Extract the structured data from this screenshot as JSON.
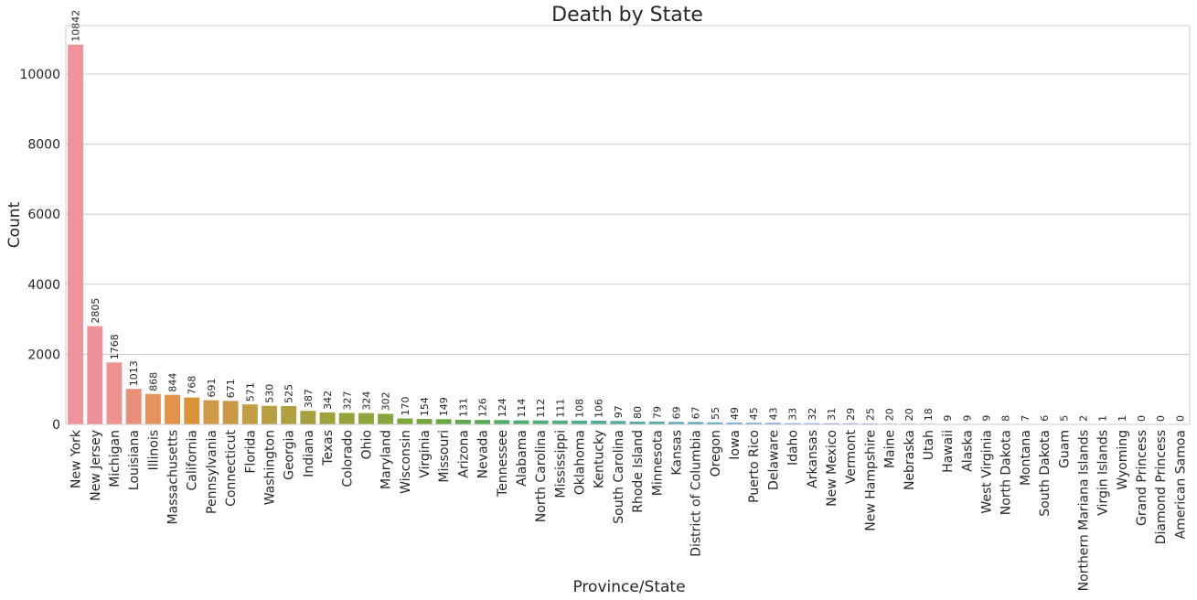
{
  "chart_data": {
    "type": "bar",
    "title": "Death by State",
    "xlabel": "Province/State",
    "ylabel": "Count",
    "ylim": [
      0,
      11384
    ],
    "yticks": [
      0,
      2000,
      4000,
      6000,
      8000,
      10000
    ],
    "grid": "horizontal",
    "categories": [
      "New York",
      "New Jersey",
      "Michigan",
      "Louisiana",
      "Illinois",
      "Massachusetts",
      "California",
      "Pennsylvania",
      "Connecticut",
      "Florida",
      "Washington",
      "Georgia",
      "Indiana",
      "Texas",
      "Colorado",
      "Ohio",
      "Maryland",
      "Wisconsin",
      "Virginia",
      "Missouri",
      "Arizona",
      "Nevada",
      "Tennessee",
      "Alabama",
      "North Carolina",
      "Mississippi",
      "Oklahoma",
      "Kentucky",
      "South Carolina",
      "Rhode Island",
      "Minnesota",
      "Kansas",
      "District of Columbia",
      "Oregon",
      "Iowa",
      "Puerto Rico",
      "Delaware",
      "Idaho",
      "Arkansas",
      "New Mexico",
      "Vermont",
      "New Hampshire",
      "Maine",
      "Nebraska",
      "Utah",
      "Hawaii",
      "Alaska",
      "West Virginia",
      "North Dakota",
      "Montana",
      "South Dakota",
      "Guam",
      "Northern Mariana Islands",
      "Virgin Islands",
      "Wyoming",
      "Grand Princess",
      "Diamond Princess",
      "American Samoa"
    ],
    "values": [
      10842,
      2805,
      1768,
      1013,
      868,
      844,
      768,
      691,
      671,
      571,
      530,
      525,
      387,
      342,
      327,
      324,
      302,
      170,
      154,
      149,
      131,
      126,
      124,
      114,
      112,
      111,
      108,
      106,
      97,
      80,
      79,
      69,
      67,
      55,
      49,
      45,
      43,
      33,
      32,
      31,
      29,
      25,
      20,
      20,
      18,
      9,
      9,
      9,
      8,
      7,
      6,
      5,
      2,
      1,
      1,
      0,
      0,
      0
    ],
    "data_labels": [
      "10842",
      "2805",
      "1768",
      "1013",
      "868",
      "844",
      "768",
      "691",
      "671",
      "571",
      "530",
      "525",
      "387",
      "342",
      "327",
      "324",
      "302",
      "170",
      "154",
      "149",
      "131",
      "126",
      "124",
      "114",
      "112",
      "111",
      "108",
      "106",
      "97",
      "80",
      "79",
      "69",
      "67",
      "55",
      "49",
      "45",
      "43",
      "33",
      "32",
      "31",
      "29",
      "25",
      "20",
      "20",
      "18",
      "9",
      "9",
      "9",
      "8",
      "7",
      "6",
      "5",
      "2",
      "1",
      "1",
      "0",
      "0",
      "0"
    ],
    "colors": [
      "#f0949b",
      "#ef919a",
      "#ec9392",
      "#e98f7a",
      "#e7925c",
      "#e39349",
      "#d9943b",
      "#cf9a4a",
      "#c89a46",
      "#c39d44",
      "#b99f42",
      "#b1a040",
      "#a8a03e",
      "#a0a23c",
      "#97a33a",
      "#8fa43a",
      "#86a53a",
      "#7ea73a",
      "#74a83e",
      "#6aa844",
      "#60a94c",
      "#58aa57",
      "#52ab62",
      "#50ab6c",
      "#4fab76",
      "#4fab80",
      "#50ab89",
      "#50aa92",
      "#51aa9a",
      "#52a9a3",
      "#53a8ab",
      "#55a7b3",
      "#57a6bb",
      "#5aa5c4",
      "#5ea4cc",
      "#62a2d5",
      "#689fdd",
      "#739be4",
      "#8096e9",
      "#8e92ec",
      "#9c8fed",
      "#a98bed",
      "#b587ec",
      "#c083ea",
      "#cb80e6",
      "#d47de1",
      "#dc7bdb",
      "#e27ad3",
      "#e87acb",
      "#ec7bc3",
      "#ee7dbb",
      "#ef80b3",
      "#f082ac",
      "#f085a4",
      "#f0889c",
      "#f08b95",
      "#f08e8e",
      "#f09087"
    ]
  }
}
